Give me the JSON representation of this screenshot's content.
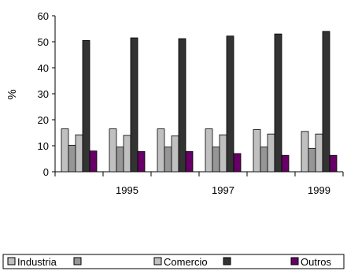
{
  "chart_data": {
    "type": "bar",
    "categories": [
      "",
      "1995",
      "",
      "1997",
      "",
      "1999"
    ],
    "ylabel": "%",
    "xlabel": "",
    "ylim": [
      0,
      60
    ],
    "yticks": [
      0,
      10,
      20,
      30,
      40,
      50,
      60
    ],
    "grid": false,
    "legend_position": "bottom",
    "series": [
      {
        "name": "Industria",
        "color": "#c0c0c0",
        "values": [
          16.5,
          16.5,
          16.5,
          16.5,
          16.2,
          15.5
        ]
      },
      {
        "name": "",
        "color": "#969696",
        "values": [
          10.2,
          9.5,
          9.5,
          9.5,
          9.5,
          9.0
        ]
      },
      {
        "name": "Comercio",
        "color": "#c0c0c0",
        "values": [
          14.2,
          14.0,
          13.8,
          14.2,
          14.5,
          14.5
        ]
      },
      {
        "name": "",
        "color": "#333333",
        "values": [
          50.5,
          51.5,
          51.2,
          52.2,
          53.0,
          54.0
        ]
      },
      {
        "name": "Outros",
        "color": "#660066",
        "values": [
          8.0,
          7.8,
          7.8,
          7.0,
          6.3,
          6.3
        ]
      }
    ]
  }
}
